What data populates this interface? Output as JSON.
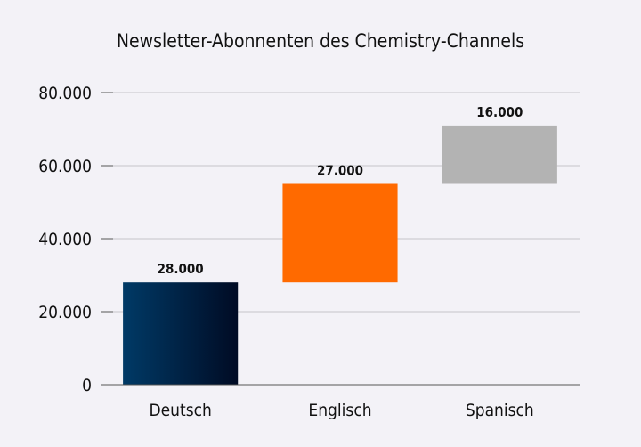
{
  "chart_data": {
    "type": "waterfall",
    "title": "Newsletter-Abonnenten des Chemistry-Channels",
    "xlabel": "",
    "ylabel": "",
    "ylim": [
      0,
      80000
    ],
    "y_ticks": [
      0,
      20000,
      40000,
      60000,
      80000
    ],
    "y_tick_labels": [
      "0",
      "20.000",
      "40.000",
      "60.000",
      "80.000"
    ],
    "grid": true,
    "legend": "none",
    "categories": [
      "Deutsch",
      "Englisch",
      "Spanisch"
    ],
    "values": [
      28000,
      27000,
      16000
    ],
    "data_labels": [
      "28.000",
      "27.000",
      "16.000"
    ],
    "colors": [
      "#003a66",
      "#ff6a00",
      "#b3b3b3"
    ],
    "gradient_end_first": "#000b24",
    "axis_color": "#555555",
    "grid_color": "#c4c4c8"
  }
}
